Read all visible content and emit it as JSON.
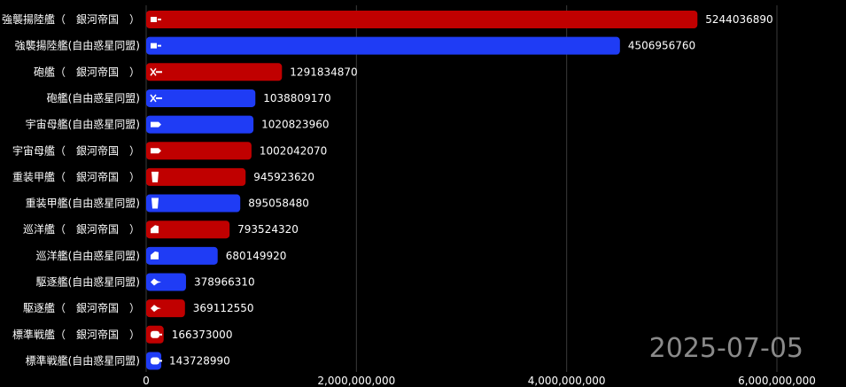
{
  "chart_data": {
    "type": "bar",
    "orientation": "horizontal",
    "date_label": "2025-07-05",
    "colors": {
      "银河帝国": "#c00000",
      "自由惑星同盟": "#1f3cf5"
    },
    "xlim": [
      0,
      6500000000
    ],
    "xticks": [
      0,
      2000000000,
      4000000000,
      6000000000
    ],
    "xtick_labels": [
      "0",
      "2,000,000,000",
      "4,000,000,000",
      "6,000,000,000"
    ],
    "grid": "vertical",
    "bars": [
      {
        "label": "強襲揚陸艦（　銀河帝国　）",
        "faction": "银河帝国",
        "value": 5244036890,
        "value_label": "5244036890",
        "icon": "assault-ship-icon"
      },
      {
        "label": "強襲揚陸艦(自由惑星同盟)",
        "faction": "自由惑星同盟",
        "value": 4506956760,
        "value_label": "4506956760",
        "icon": "assault-ship-icon"
      },
      {
        "label": "砲艦（　銀河帝国　）",
        "faction": "银河帝国",
        "value": 1291834870,
        "value_label": "1291834870",
        "icon": "gunboat-icon"
      },
      {
        "label": "砲艦(自由惑星同盟)",
        "faction": "自由惑星同盟",
        "value": 1038809170,
        "value_label": "1038809170",
        "icon": "gunboat-icon"
      },
      {
        "label": "宇宙母艦(自由惑星同盟)",
        "faction": "自由惑星同盟",
        "value": 1020823960,
        "value_label": "1020823960",
        "icon": "carrier-icon"
      },
      {
        "label": "宇宙母艦（　銀河帝国　）",
        "faction": "银河帝国",
        "value": 1002042070,
        "value_label": "1002042070",
        "icon": "carrier-icon"
      },
      {
        "label": "重装甲艦（　銀河帝国　）",
        "faction": "银河帝国",
        "value": 945923620,
        "value_label": "945923620",
        "icon": "armored-ship-icon"
      },
      {
        "label": "重装甲艦(自由惑星同盟)",
        "faction": "自由惑星同盟",
        "value": 895058480,
        "value_label": "895058480",
        "icon": "armored-ship-icon"
      },
      {
        "label": "巡洋艦（　銀河帝国　）",
        "faction": "银河帝国",
        "value": 793524320,
        "value_label": "793524320",
        "icon": "cruiser-icon"
      },
      {
        "label": "巡洋艦(自由惑星同盟)",
        "faction": "自由惑星同盟",
        "value": 680149920,
        "value_label": "680149920",
        "icon": "cruiser-icon"
      },
      {
        "label": "駆逐艦(自由惑星同盟)",
        "faction": "自由惑星同盟",
        "value": 378966310,
        "value_label": "378966310",
        "icon": "destroyer-icon"
      },
      {
        "label": "駆逐艦（　銀河帝国　）",
        "faction": "银河帝国",
        "value": 369112550,
        "value_label": "369112550",
        "icon": "destroyer-icon"
      },
      {
        "label": "標準戦艦（　銀河帝国　）",
        "faction": "银河帝国",
        "value": 166373000,
        "value_label": "166373000",
        "icon": "battleship-icon"
      },
      {
        "label": "標準戦艦(自由惑星同盟)",
        "faction": "自由惑星同盟",
        "value": 143728990,
        "value_label": "143728990",
        "icon": "battleship-icon"
      }
    ]
  }
}
